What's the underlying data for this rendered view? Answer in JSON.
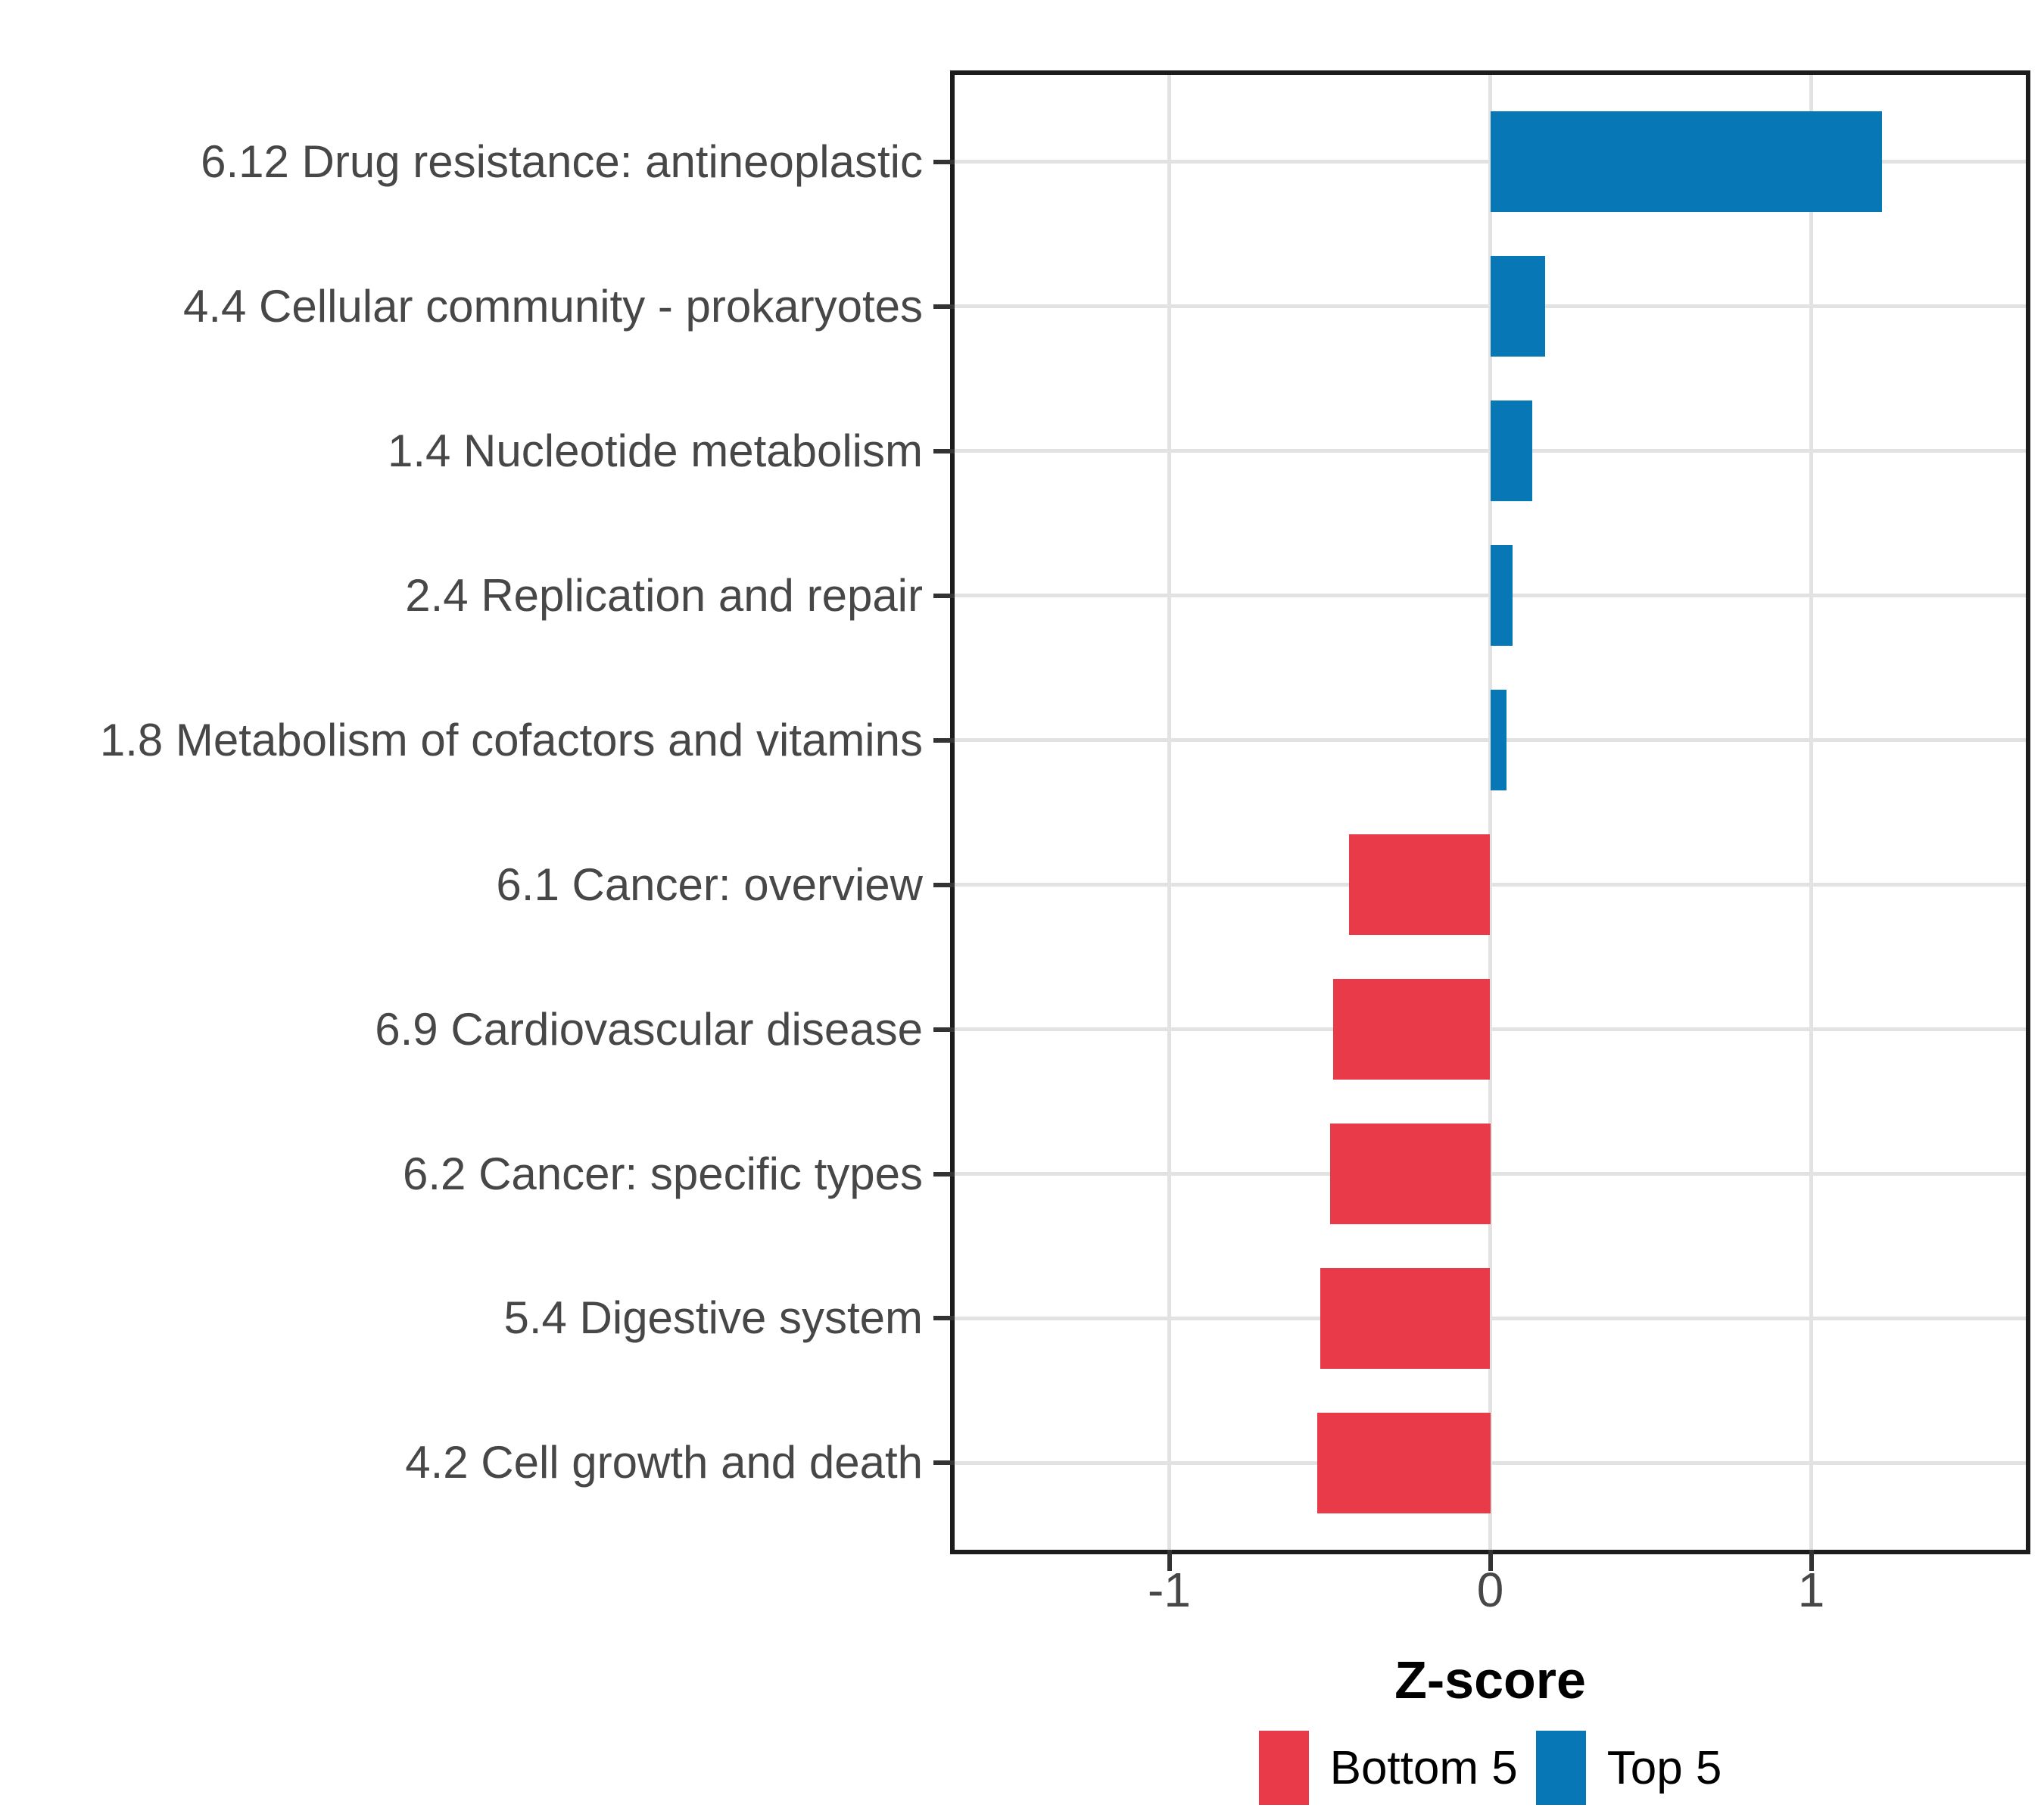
{
  "chart_data": {
    "type": "bar",
    "orientation": "horizontal",
    "title": "",
    "xlabel": "Z-score",
    "ylabel": "",
    "xlim": [
      -1.67,
      1.67
    ],
    "x_ticks": [
      -1,
      0,
      1
    ],
    "x_tick_labels": [
      "-1",
      "0",
      "1"
    ],
    "grid": "major-only",
    "legend_position": "bottom",
    "categories": [
      "6.12 Drug resistance: antineoplastic",
      "4.4 Cellular community - prokaryotes",
      "1.4 Nucleotide metabolism",
      "2.4 Replication and repair",
      "1.8 Metabolism of cofactors and vitamins",
      "6.1 Cancer: overview",
      "6.9 Cardiovascular disease",
      "6.2 Cancer: specific types",
      "5.4 Digestive system",
      "4.2 Cell growth and death"
    ],
    "values": [
      1.22,
      0.17,
      0.13,
      0.07,
      0.05,
      -0.44,
      -0.49,
      -0.5,
      -0.53,
      -0.54
    ],
    "groups": [
      "Top 5",
      "Top 5",
      "Top 5",
      "Top 5",
      "Top 5",
      "Bottom 5",
      "Bottom 5",
      "Bottom 5",
      "Bottom 5",
      "Bottom 5"
    ]
  },
  "legend": {
    "items": [
      {
        "label": "Bottom 5",
        "color": "#e83a48"
      },
      {
        "label": "Top 5",
        "color": "#0778b5"
      }
    ]
  },
  "colors": {
    "top5": "#0778b5",
    "bottom5": "#e83a48",
    "gridline": "#e2e2e2",
    "axis_text": "#474747",
    "panel_border": "#1c1c1c",
    "tick_mark": "#333333"
  }
}
